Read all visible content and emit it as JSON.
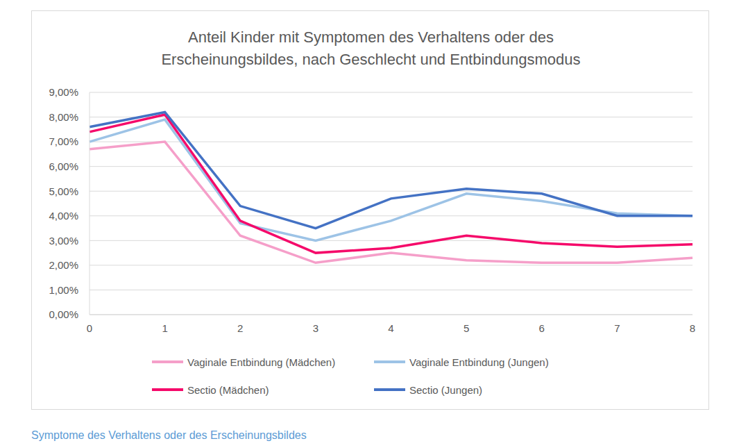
{
  "chart_data": {
    "type": "line",
    "title": "Anteil Kinder mit Symptomen des Verhaltens oder des Erscheinungsbildes, nach Geschlecht und Entbindungsmodus",
    "caption": "Symptome des Verhaltens oder des Erscheinungsbildes",
    "categories": [
      "0",
      "1",
      "2",
      "3",
      "4",
      "5",
      "6",
      "7",
      "8"
    ],
    "series": [
      {
        "name": "Vaginale Entbindung (Mädchen)",
        "color": "#f59fc9",
        "values": [
          6.7,
          7.0,
          3.2,
          2.1,
          2.5,
          2.2,
          2.1,
          2.1,
          2.3
        ]
      },
      {
        "name": "Vaginale Entbindung (Jungen)",
        "color": "#9dc3e6",
        "values": [
          7.0,
          7.9,
          3.7,
          3.0,
          3.8,
          4.9,
          4.6,
          4.1,
          4.0
        ]
      },
      {
        "name": "Sectio (Mädchen)",
        "color": "#f50a6a",
        "values": [
          7.4,
          8.1,
          3.8,
          2.5,
          2.7,
          3.2,
          2.9,
          2.75,
          2.85
        ]
      },
      {
        "name": "Sectio (Jungen)",
        "color": "#4472c4",
        "values": [
          7.6,
          8.2,
          4.4,
          3.5,
          4.7,
          5.1,
          4.9,
          4.0,
          4.0
        ]
      }
    ],
    "ylim": [
      0,
      9
    ],
    "yticks": [
      {
        "value": 0,
        "label": "0,00%"
      },
      {
        "value": 1,
        "label": "1,00%"
      },
      {
        "value": 2,
        "label": "2,00%"
      },
      {
        "value": 3,
        "label": "3,00%"
      },
      {
        "value": 4,
        "label": "4,00%"
      },
      {
        "value": 5,
        "label": "5,00%"
      },
      {
        "value": 6,
        "label": "6,00%"
      },
      {
        "value": 7,
        "label": "7,00%"
      },
      {
        "value": 8,
        "label": "8,00%"
      },
      {
        "value": 9,
        "label": "9,00%"
      }
    ],
    "grid": true,
    "legend": "bottom"
  }
}
